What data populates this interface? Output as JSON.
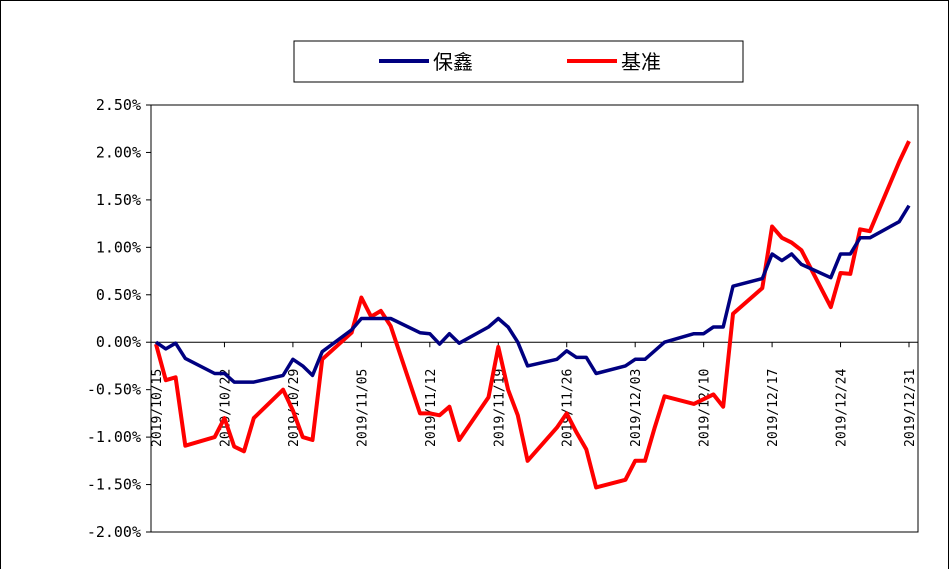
{
  "chart_data": {
    "type": "line",
    "title": "",
    "xlabel": "",
    "ylabel": "",
    "ylim": [
      -0.02,
      0.025
    ],
    "yticks": [
      {
        "value": 0.025,
        "label": "2.50%"
      },
      {
        "value": 0.02,
        "label": "2.00%"
      },
      {
        "value": 0.015,
        "label": "1.50%"
      },
      {
        "value": 0.01,
        "label": "1.00%"
      },
      {
        "value": 0.005,
        "label": "0.50%"
      },
      {
        "value": 0.0,
        "label": "0.00%"
      },
      {
        "value": -0.005,
        "label": "-0.50%"
      },
      {
        "value": -0.01,
        "label": "-1.00%"
      },
      {
        "value": -0.015,
        "label": "-1.50%"
      },
      {
        "value": -0.02,
        "label": "-2.00%"
      }
    ],
    "xticks": [
      "2019/10/15",
      "2019/10/22",
      "2019/10/29",
      "2019/11/05",
      "2019/11/12",
      "2019/11/19",
      "2019/11/26",
      "2019/12/03",
      "2019/12/10",
      "2019/12/17",
      "2019/12/24",
      "2019/12/31"
    ],
    "x": [
      "2019/10/15",
      "2019/10/16",
      "2019/10/17",
      "2019/10/18",
      "2019/10/21",
      "2019/10/22",
      "2019/10/23",
      "2019/10/24",
      "2019/10/25",
      "2019/10/28",
      "2019/10/29",
      "2019/10/30",
      "2019/10/31",
      "2019/11/01",
      "2019/11/04",
      "2019/11/05",
      "2019/11/06",
      "2019/11/07",
      "2019/11/08",
      "2019/11/11",
      "2019/11/12",
      "2019/11/13",
      "2019/11/14",
      "2019/11/15",
      "2019/11/18",
      "2019/11/19",
      "2019/11/20",
      "2019/11/21",
      "2019/11/22",
      "2019/11/25",
      "2019/11/26",
      "2019/11/27",
      "2019/11/28",
      "2019/11/29",
      "2019/12/02",
      "2019/12/03",
      "2019/12/04",
      "2019/12/05",
      "2019/12/06",
      "2019/12/09",
      "2019/12/10",
      "2019/12/11",
      "2019/12/12",
      "2019/12/13",
      "2019/12/16",
      "2019/12/17",
      "2019/12/18",
      "2019/12/19",
      "2019/12/20",
      "2019/12/23",
      "2019/12/24",
      "2019/12/25",
      "2019/12/26",
      "2019/12/27",
      "2019/12/30",
      "2019/12/31"
    ],
    "series": [
      {
        "name": "保鑫",
        "color": "#000080",
        "values": [
          0.0,
          -0.0007,
          -0.0001,
          -0.0017,
          -0.0033,
          -0.0033,
          -0.0042,
          -0.0042,
          -0.0042,
          -0.0035,
          -0.0018,
          -0.0025,
          -0.0035,
          -0.001,
          0.0013,
          0.0025,
          0.0025,
          0.0025,
          0.0025,
          0.001,
          0.0009,
          -0.0002,
          0.0009,
          -0.0001,
          0.0016,
          0.0025,
          0.0016,
          0.0,
          -0.0025,
          -0.0018,
          -0.0009,
          -0.0016,
          -0.0016,
          -0.0033,
          -0.0025,
          -0.0018,
          -0.0018,
          -0.0009,
          0.0,
          0.0009,
          0.0009,
          0.0016,
          0.0016,
          0.0059,
          0.0067,
          0.0093,
          0.0086,
          0.0093,
          0.0082,
          0.0068,
          0.0093,
          0.0093,
          0.011,
          0.011,
          0.0127,
          0.0144
        ]
      },
      {
        "name": "基准",
        "color": "#ff0000",
        "values": [
          -0.0002,
          -0.004,
          -0.0037,
          -0.0109,
          -0.01,
          -0.008,
          -0.011,
          -0.0115,
          -0.008,
          -0.005,
          -0.0072,
          -0.01,
          -0.0103,
          -0.0018,
          0.001,
          0.0047,
          0.0027,
          0.0033,
          0.0017,
          -0.0075,
          -0.0075,
          -0.0077,
          -0.0068,
          -0.0103,
          -0.0058,
          -0.0005,
          -0.005,
          -0.0077,
          -0.0125,
          -0.009,
          -0.0075,
          -0.0095,
          -0.0113,
          -0.0153,
          -0.0145,
          -0.0125,
          -0.0125,
          -0.009,
          -0.0057,
          -0.0065,
          -0.006,
          -0.0055,
          -0.0068,
          0.003,
          0.0057,
          0.0122,
          0.011,
          0.0105,
          0.0097,
          0.0037,
          0.0073,
          0.0072,
          0.0119,
          0.0117,
          0.019,
          0.0212
        ]
      }
    ],
    "legend": {
      "position": "top-center"
    }
  }
}
